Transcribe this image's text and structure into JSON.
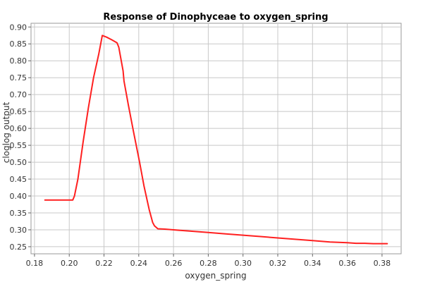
{
  "chart_data": {
    "type": "line",
    "title": "Response of Dinophyceae to oxygen_spring",
    "xlabel": "oxygen_spring",
    "ylabel": "cloglog output",
    "xlim": [
      0.178,
      0.391
    ],
    "ylim": [
      0.229,
      0.911
    ],
    "x_ticks": [
      0.18,
      0.2,
      0.22,
      0.24,
      0.26,
      0.28,
      0.3,
      0.32,
      0.34,
      0.36,
      0.38
    ],
    "x_tick_labels": [
      "0.18",
      "0.20",
      "0.22",
      "0.24",
      "0.26",
      "0.28",
      "0.30",
      "0.32",
      "0.34",
      "0.36",
      "0.38"
    ],
    "y_ticks": [
      0.25,
      0.3,
      0.35,
      0.4,
      0.45,
      0.5,
      0.55,
      0.6,
      0.65,
      0.7,
      0.75,
      0.8,
      0.85,
      0.9
    ],
    "y_tick_labels": [
      "0.25",
      "0.30",
      "0.35",
      "0.40",
      "0.45",
      "0.50",
      "0.55",
      "0.60",
      "0.65",
      "0.70",
      "0.75",
      "0.80",
      "0.85",
      "0.90"
    ],
    "grid": true,
    "series": [
      {
        "color": "#ff2020",
        "x": [
          0.186,
          0.19,
          0.195,
          0.199,
          0.202,
          0.203,
          0.205,
          0.208,
          0.211,
          0.214,
          0.217,
          0.219,
          0.2215,
          0.2245,
          0.2275,
          0.2285,
          0.231,
          0.2315,
          0.234,
          0.237,
          0.2405,
          0.243,
          0.246,
          0.248,
          0.249,
          0.251,
          0.255,
          0.26,
          0.27,
          0.28,
          0.29,
          0.3,
          0.31,
          0.32,
          0.33,
          0.34,
          0.35,
          0.36,
          0.365,
          0.37,
          0.375,
          0.383
        ],
        "y": [
          0.388,
          0.388,
          0.388,
          0.388,
          0.388,
          0.4,
          0.45,
          0.56,
          0.66,
          0.75,
          0.82,
          0.875,
          0.87,
          0.862,
          0.853,
          0.84,
          0.77,
          0.74,
          0.67,
          0.59,
          0.5,
          0.43,
          0.36,
          0.322,
          0.312,
          0.303,
          0.302,
          0.3,
          0.296,
          0.292,
          0.288,
          0.284,
          0.28,
          0.276,
          0.272,
          0.268,
          0.264,
          0.262,
          0.26,
          0.26,
          0.259,
          0.259
        ]
      }
    ]
  }
}
